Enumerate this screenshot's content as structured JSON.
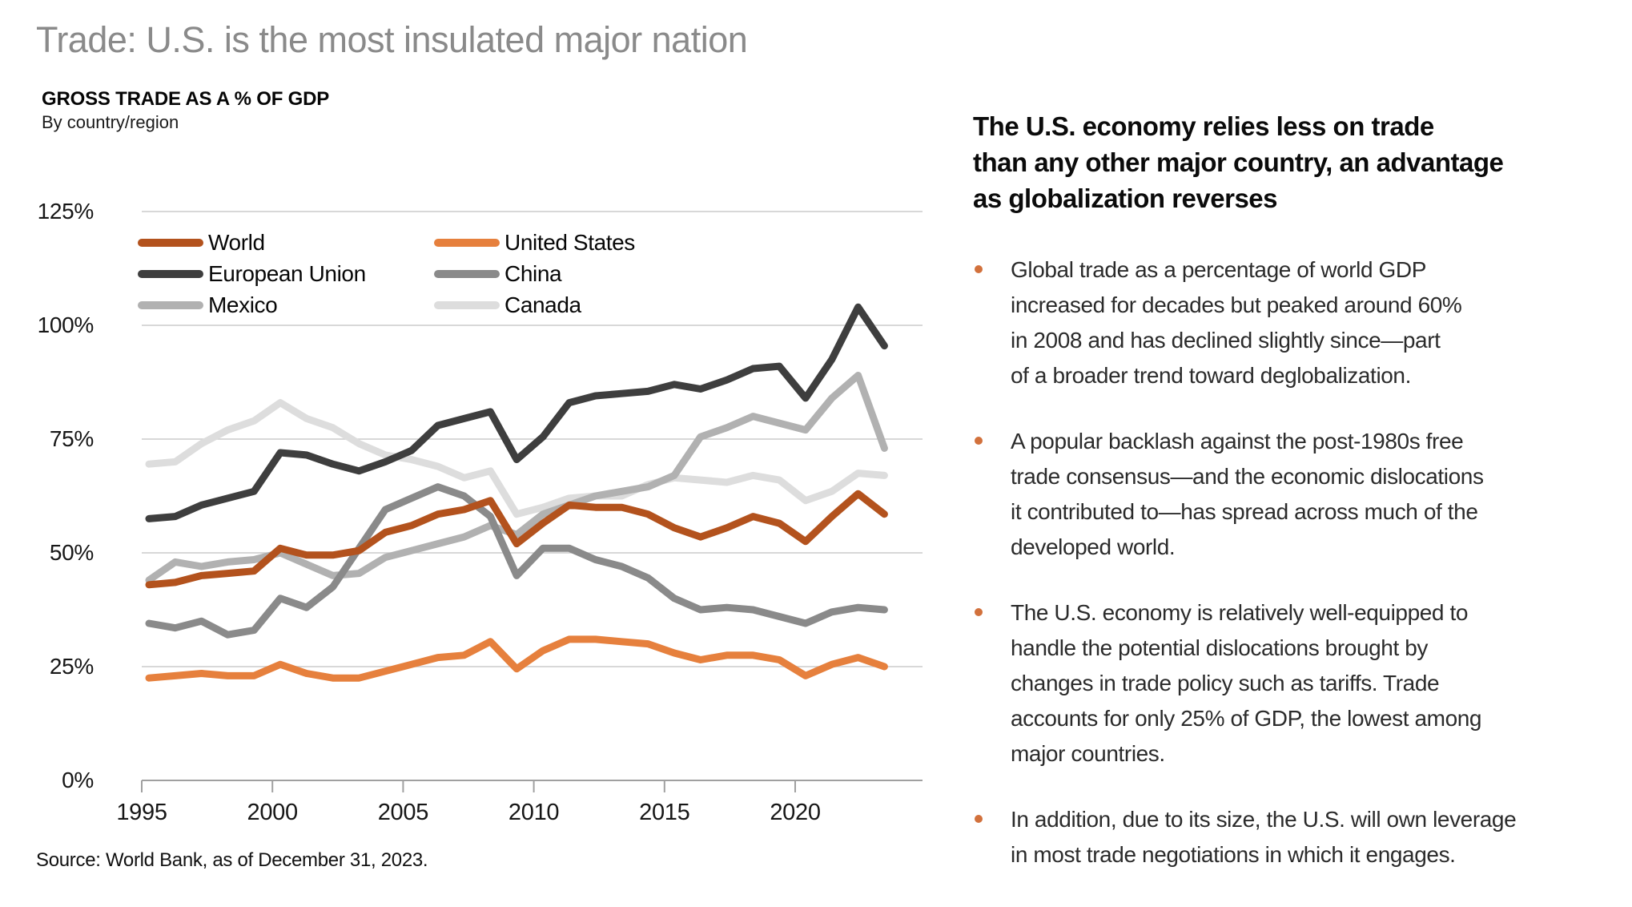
{
  "page": {
    "title": "Trade: U.S. is the most insulated major nation",
    "source": "Source: World Bank, as of December 31, 2023."
  },
  "chart": {
    "heading": "GROSS TRADE AS A % OF GDP",
    "subheading": "By country/region"
  },
  "right_panel": {
    "heading": "The U.S. economy relies less on trade\nthan any other major country, an advantage\nas globalization reverses",
    "bullet_color": "#d2713c",
    "bullets": [
      "Global trade as a percentage of world GDP\nincreased for decades but peaked around 60%\nin 2008 and has declined slightly since—part\nof a broader trend toward deglobalization.",
      "A popular backlash against the post-1980s free\ntrade consensus—and the economic dislocations\nit contributed to—has spread across much of the\ndeveloped world.",
      "The U.S. economy is relatively well-equipped to\nhandle the potential dislocations brought by\nchanges in trade policy such as tariffs. Trade\naccounts for only 25% of GDP, the lowest among\nmajor countries.",
      "In addition, due to its size, the U.S. will own leverage\nin most trade negotiations in which it engages."
    ]
  },
  "chart_data": {
    "type": "line",
    "title": "GROSS TRADE AS A % OF GDP",
    "subtitle": "By country/region",
    "xlabel": "",
    "ylabel": "Gross trade as a % of GDP",
    "x": [
      1995,
      1996,
      1997,
      1998,
      1999,
      2000,
      2001,
      2002,
      2003,
      2004,
      2005,
      2006,
      2007,
      2008,
      2009,
      2010,
      2011,
      2012,
      2013,
      2014,
      2015,
      2016,
      2017,
      2018,
      2019,
      2020,
      2021,
      2022,
      2023
    ],
    "x_tick_years": [
      1995,
      2000,
      2005,
      2010,
      2015,
      2020
    ],
    "x_tick_labels": [
      "1995",
      "2000",
      "2005",
      "2010",
      "2015",
      "2020"
    ],
    "y_tick_values": [
      0,
      25,
      50,
      75,
      100,
      125
    ],
    "y_tick_labels": [
      "0%",
      "25%",
      "50%",
      "75%",
      "100%",
      "125%"
    ],
    "ylim": [
      0,
      125
    ],
    "grid": "horizontal",
    "legend_position": "top-left two-column",
    "grid_color": "#cccccc",
    "axis_color": "#a0a0a0",
    "series": [
      {
        "name": "World",
        "color": "#b3521d",
        "values": [
          43,
          43.5,
          45,
          45.5,
          46,
          51,
          49.5,
          49.5,
          50.5,
          54.5,
          56,
          58.5,
          59.5,
          61.5,
          52,
          56.5,
          60.5,
          60,
          60,
          58.5,
          55.5,
          53.5,
          55.5,
          58,
          56.5,
          52.5,
          58,
          63,
          58.5
        ]
      },
      {
        "name": "United States",
        "color": "#e6803d",
        "values": [
          22.5,
          23,
          23.5,
          23,
          23,
          25.5,
          23.5,
          22.5,
          22.5,
          24,
          25.5,
          27,
          27.5,
          30.5,
          24.5,
          28.5,
          31,
          31,
          30.5,
          30,
          28,
          26.5,
          27.5,
          27.5,
          26.5,
          23,
          25.5,
          27,
          25
        ]
      },
      {
        "name": "European Union",
        "color": "#3e3e3e",
        "values": [
          57.5,
          58,
          60.5,
          62,
          63.5,
          72,
          71.5,
          69.5,
          68,
          70,
          72.5,
          78,
          79.5,
          81,
          70.5,
          75.5,
          83,
          84.5,
          85,
          85.5,
          87,
          86,
          88,
          90.5,
          91,
          84,
          92.5,
          104,
          95.5
        ]
      },
      {
        "name": "China",
        "color": "#8a8a8a",
        "values": [
          34.5,
          33.5,
          35,
          32,
          33,
          40,
          38,
          42.5,
          51,
          59.5,
          62,
          64.5,
          62.5,
          58,
          45,
          51,
          51,
          48.5,
          47,
          44.5,
          40,
          37.5,
          38,
          37.5,
          36,
          34.5,
          37,
          38,
          37.5
        ]
      },
      {
        "name": "Mexico",
        "color": "#b1b1b1",
        "values": [
          44,
          48,
          47,
          48,
          48.5,
          50,
          47.5,
          45,
          45.5,
          49,
          50.5,
          52,
          53.5,
          56,
          54,
          58.5,
          60.5,
          62.5,
          63.5,
          64.5,
          67,
          75.5,
          77.5,
          80,
          78.5,
          77,
          84,
          89,
          73
        ]
      },
      {
        "name": "Canada",
        "color": "#dddddd",
        "values": [
          69.5,
          70,
          74,
          77,
          79,
          83,
          79.5,
          77.5,
          74,
          71.5,
          70.5,
          69,
          66.5,
          68,
          58.5,
          60,
          62,
          62.5,
          62.5,
          65,
          66.5,
          66,
          65.5,
          67,
          66,
          61.5,
          63.5,
          67.5,
          67
        ]
      }
    ],
    "draw_order": [
      "Canada",
      "Mexico",
      "China",
      "European Union",
      "World",
      "United States"
    ]
  }
}
